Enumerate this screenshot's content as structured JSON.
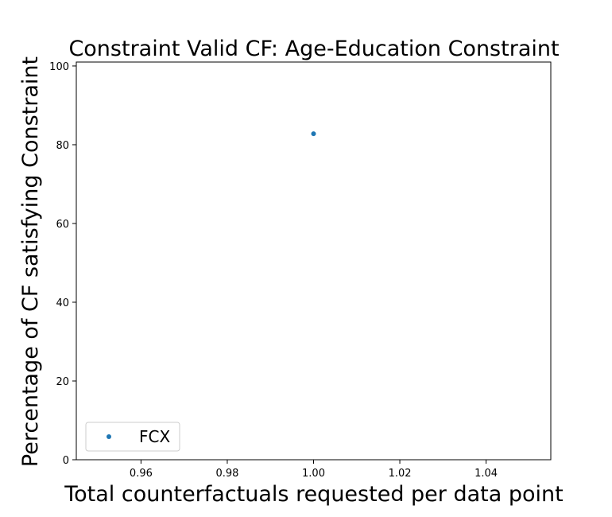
{
  "chart_data": {
    "type": "scatter",
    "title": "Constraint Valid CF: Age-Education Constraint",
    "xlabel": "Total counterfactuals requested per data point",
    "ylabel": "Percentage of CF satisfying Constraint",
    "xlim": [
      0.945,
      1.055
    ],
    "ylim": [
      0,
      101
    ],
    "xticks": [
      0.96,
      0.98,
      1.0,
      1.02,
      1.04
    ],
    "xtick_labels": [
      "0.96",
      "0.98",
      "1.00",
      "1.02",
      "1.04"
    ],
    "yticks": [
      0,
      20,
      40,
      60,
      80,
      100
    ],
    "ytick_labels": [
      "0",
      "20",
      "40",
      "60",
      "80",
      "100"
    ],
    "grid": false,
    "legend_position": "lower-left",
    "series": [
      {
        "name": "FCX",
        "color": "#1f77b4",
        "marker": "circle",
        "points": [
          {
            "x": 1.0,
            "y": 82.8
          }
        ]
      }
    ]
  }
}
